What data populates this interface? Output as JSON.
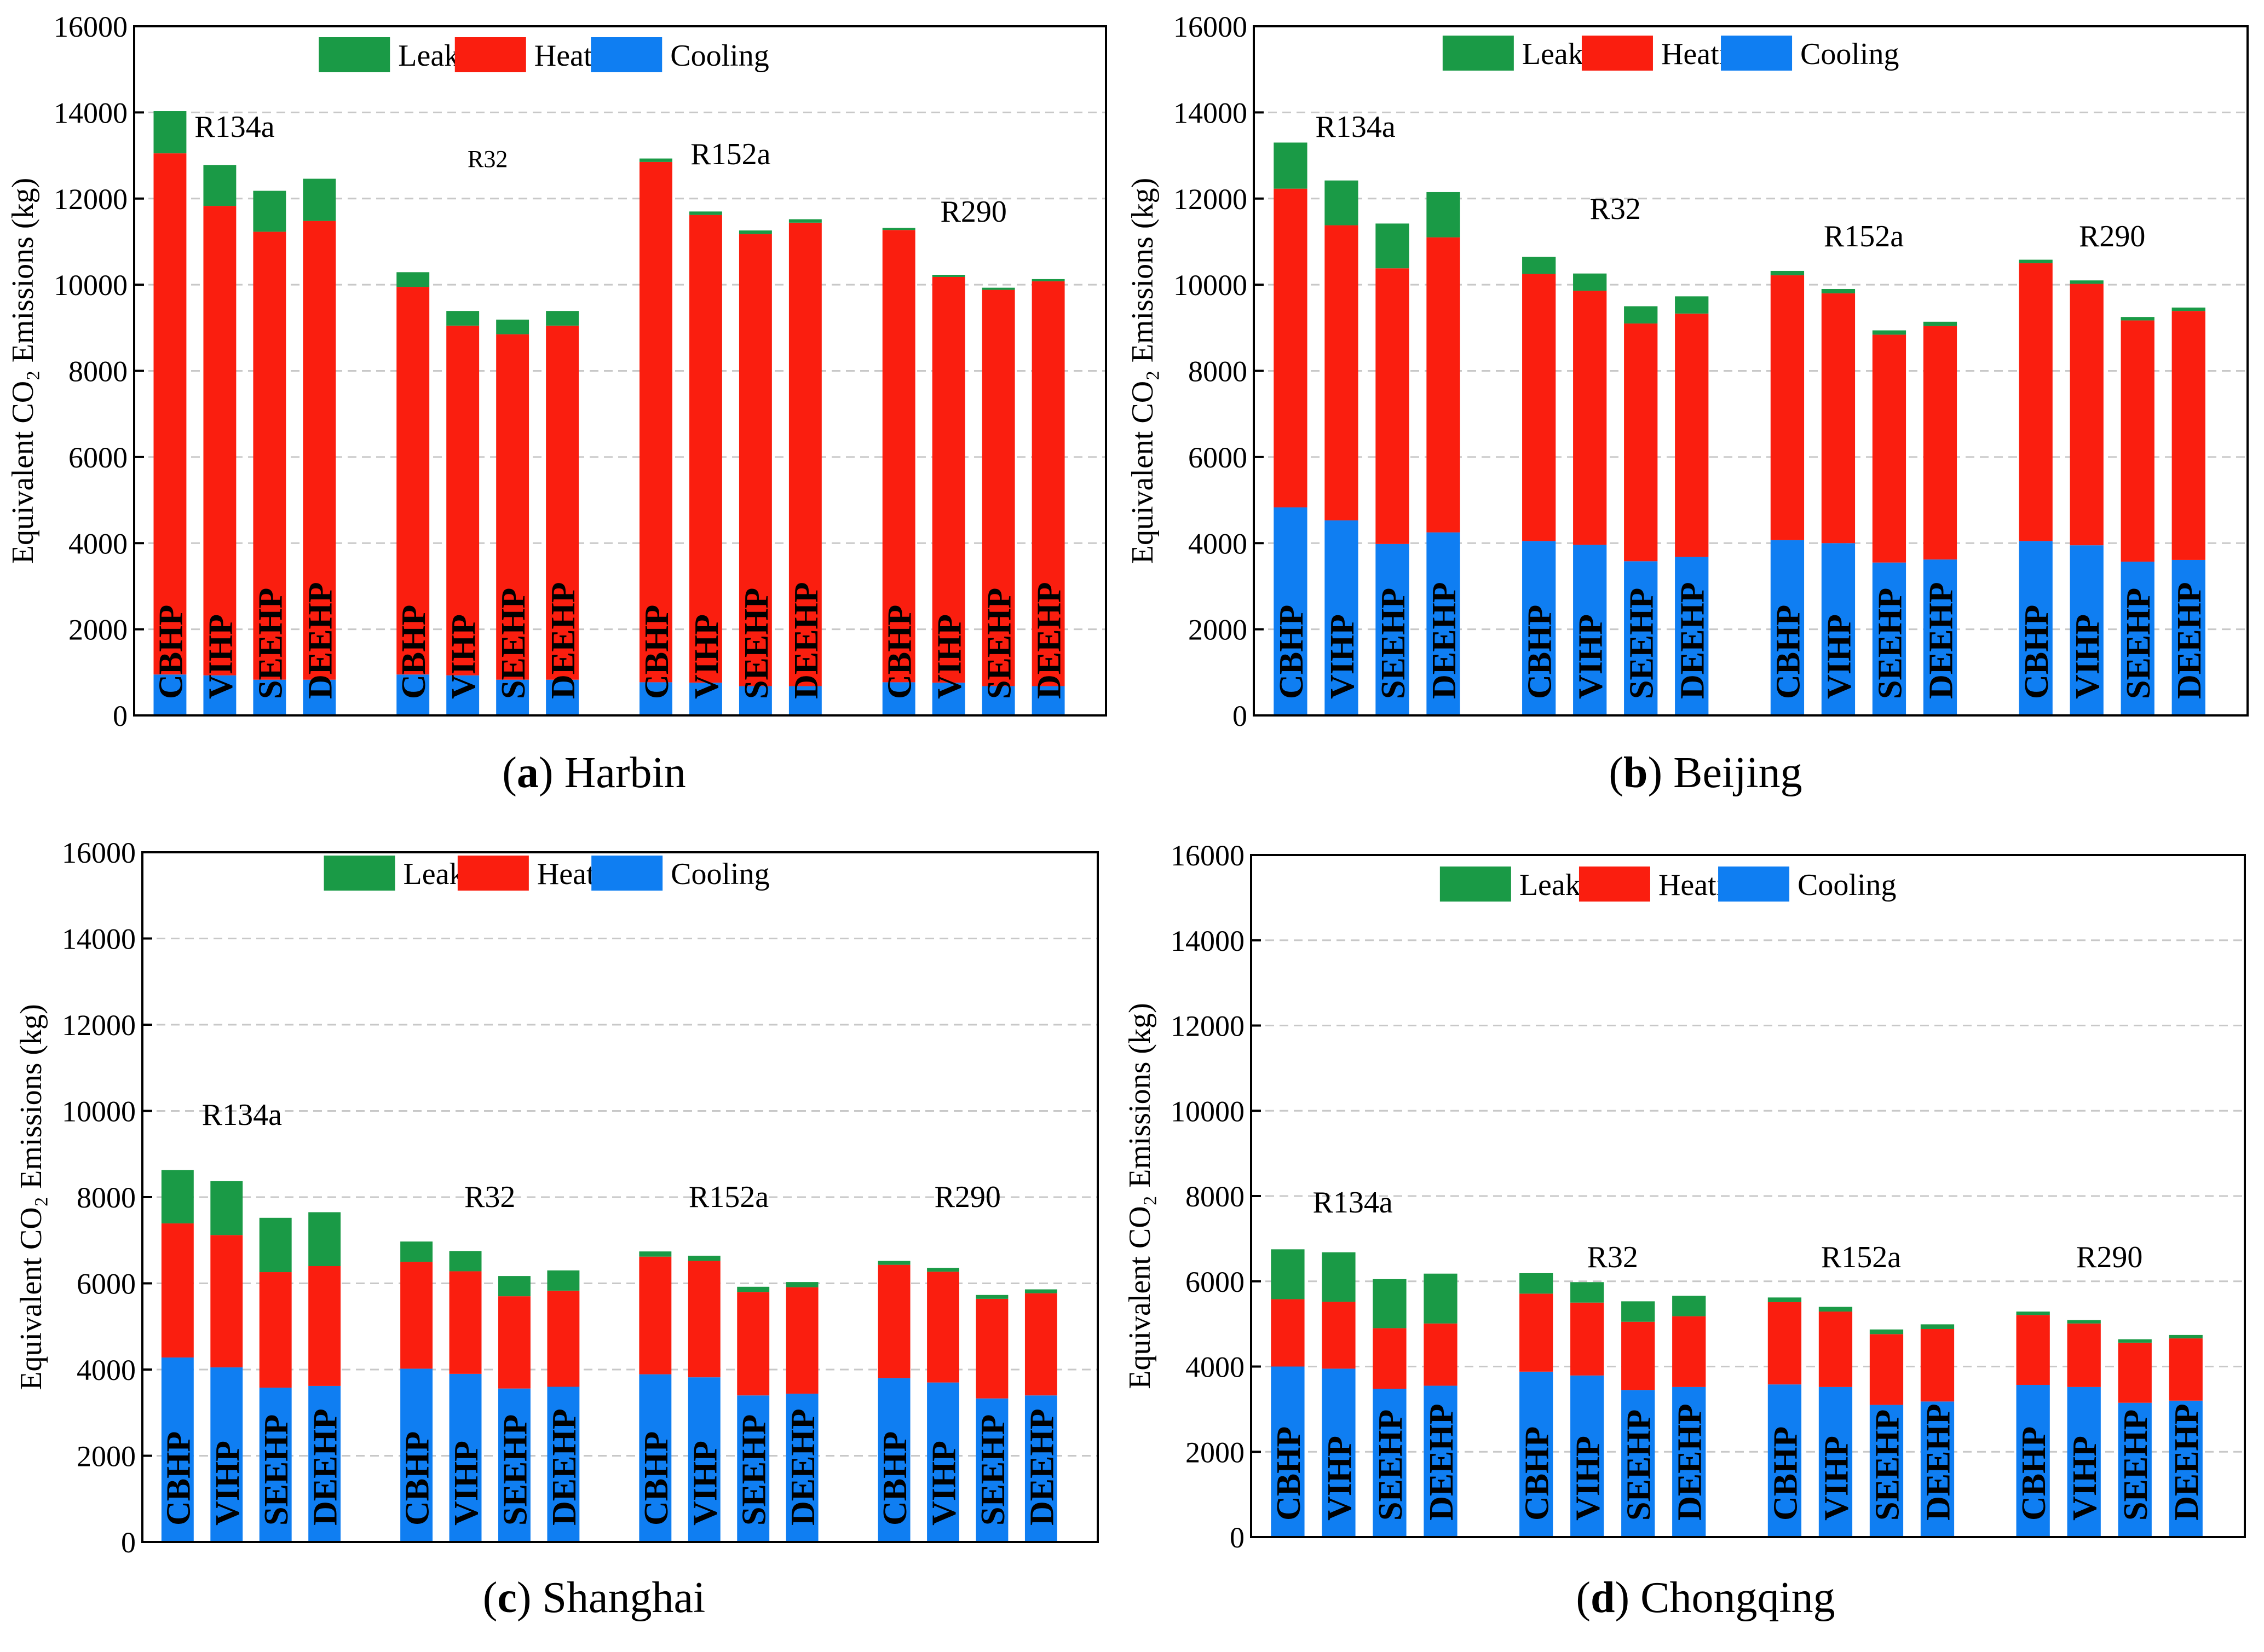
{
  "figure": {
    "type": "stacked-bar-panels"
  },
  "colors": {
    "leakage": "#1a9a46",
    "heating": "#fa1e0f",
    "cooling": "#0f7ef2",
    "grid": "#c8c8c8",
    "axis": "#000000"
  },
  "chart_data": [
    {
      "type": "bar",
      "stacked": true,
      "panel_letter": "a",
      "panel_title": " Harbin",
      "panel_prefix": "(",
      "panel_suffix": ")",
      "ylabel": "Equivalent CO₂ Emissions (kg)",
      "ylim": [
        0,
        16000
      ],
      "yticks": [
        0,
        2000,
        4000,
        6000,
        8000,
        10000,
        12000,
        14000,
        16000
      ],
      "grid": true,
      "legend": [
        "Leakage",
        "Heating",
        "Cooling"
      ],
      "legend_position": "top-center",
      "groups": [
        {
          "name": "R134a",
          "categories": [
            "CBHP",
            "VIHP",
            "SEEHP",
            "DEEHP"
          ],
          "cooling": [
            950,
            930,
            830,
            830
          ],
          "heating": [
            12100,
            10900,
            10400,
            10650
          ],
          "leakage": [
            980,
            950,
            950,
            980
          ]
        },
        {
          "name": "R32",
          "categories": [
            "CBHP",
            "VIHP",
            "SEEHP",
            "DEEHP"
          ],
          "cooling": [
            950,
            930,
            830,
            830
          ],
          "heating": [
            9000,
            8120,
            8020,
            8220
          ],
          "leakage": [
            340,
            340,
            340,
            340
          ]
        },
        {
          "name": "R152a",
          "categories": [
            "CBHP",
            "VIHP",
            "SEEHP",
            "DEEHP"
          ],
          "cooling": [
            770,
            760,
            680,
            680
          ],
          "heating": [
            12080,
            10860,
            10500,
            10760
          ],
          "leakage": [
            80,
            80,
            80,
            80
          ]
        },
        {
          "name": "R290",
          "categories": [
            "CBHP",
            "VIHP",
            "SEEHP",
            "DEEHP"
          ],
          "cooling": [
            770,
            760,
            680,
            680
          ],
          "heating": [
            10500,
            9420,
            9200,
            9400
          ],
          "leakage": [
            50,
            50,
            50,
            50
          ]
        }
      ]
    },
    {
      "type": "bar",
      "stacked": true,
      "panel_letter": "b",
      "panel_title": " Beijing",
      "panel_prefix": "(",
      "panel_suffix": ")",
      "ylabel": "Equivalent CO₂ Emissions (kg)",
      "ylim": [
        0,
        16000
      ],
      "yticks": [
        0,
        2000,
        4000,
        6000,
        8000,
        10000,
        12000,
        14000,
        16000
      ],
      "grid": true,
      "legend": [
        "Leakage",
        "Heating",
        "Cooling"
      ],
      "legend_position": "top-center",
      "groups": [
        {
          "name": "R134a",
          "categories": [
            "CBHP",
            "VIHP",
            "SEEHP",
            "DEEHP"
          ],
          "cooling": [
            4830,
            4530,
            3980,
            4250
          ],
          "heating": [
            7400,
            6850,
            6400,
            6850
          ],
          "leakage": [
            1070,
            1040,
            1040,
            1050
          ]
        },
        {
          "name": "R32",
          "categories": [
            "CBHP",
            "VIHP",
            "SEEHP",
            "DEEHP"
          ],
          "cooling": [
            4050,
            3960,
            3580,
            3680
          ],
          "heating": [
            6200,
            5900,
            5520,
            5650
          ],
          "leakage": [
            400,
            400,
            400,
            400
          ]
        },
        {
          "name": "R152a",
          "categories": [
            "CBHP",
            "VIHP",
            "SEEHP",
            "DEEHP"
          ],
          "cooling": [
            4070,
            4000,
            3550,
            3620
          ],
          "heating": [
            6150,
            5800,
            5290,
            5420
          ],
          "leakage": [
            100,
            100,
            100,
            100
          ]
        },
        {
          "name": "R290",
          "categories": [
            "CBHP",
            "VIHP",
            "SEEHP",
            "DEEHP"
          ],
          "cooling": [
            4050,
            3950,
            3570,
            3610
          ],
          "heating": [
            6450,
            6070,
            5600,
            5780
          ],
          "leakage": [
            80,
            80,
            80,
            80
          ]
        }
      ]
    },
    {
      "type": "bar",
      "stacked": true,
      "panel_letter": "c",
      "panel_title": " Shanghai",
      "panel_prefix": "(",
      "panel_suffix": ")",
      "ylabel": "Equivalent CO₂ Emissions (kg)",
      "ylim": [
        0,
        16000
      ],
      "yticks": [
        0,
        2000,
        4000,
        6000,
        8000,
        10000,
        12000,
        14000,
        16000
      ],
      "grid": true,
      "legend": [
        "Leakage",
        "Heating",
        "Cooling"
      ],
      "legend_position": "top-center",
      "groups": [
        {
          "name": "R134a",
          "categories": [
            "CBHP",
            "VIHP",
            "SEEHP",
            "DEEHP"
          ],
          "cooling": [
            4280,
            4050,
            3580,
            3620
          ],
          "heating": [
            3110,
            3070,
            2680,
            2780
          ],
          "leakage": [
            1240,
            1250,
            1260,
            1250
          ]
        },
        {
          "name": "R32",
          "categories": [
            "CBHP",
            "VIHP",
            "SEEHP",
            "DEEHP"
          ],
          "cooling": [
            4020,
            3900,
            3560,
            3600
          ],
          "heating": [
            2480,
            2380,
            2140,
            2230
          ],
          "leakage": [
            470,
            470,
            470,
            470
          ]
        },
        {
          "name": "R152a",
          "categories": [
            "CBHP",
            "VIHP",
            "SEEHP",
            "DEEHP"
          ],
          "cooling": [
            3890,
            3820,
            3400,
            3440
          ],
          "heating": [
            2730,
            2700,
            2400,
            2470
          ],
          "leakage": [
            120,
            120,
            120,
            120
          ]
        },
        {
          "name": "R290",
          "categories": [
            "CBHP",
            "VIHP",
            "SEEHP",
            "DEEHP"
          ],
          "cooling": [
            3800,
            3700,
            3330,
            3400
          ],
          "heating": [
            2630,
            2570,
            2310,
            2370
          ],
          "leakage": [
            90,
            90,
            90,
            90
          ]
        }
      ]
    },
    {
      "type": "bar",
      "stacked": true,
      "panel_letter": "d",
      "panel_title": " Chongqing",
      "panel_prefix": "(",
      "panel_suffix": ")",
      "ylabel": "Equivalent CO₂ Emissions (kg)",
      "ylim": [
        0,
        16000
      ],
      "yticks": [
        0,
        2000,
        4000,
        6000,
        8000,
        10000,
        12000,
        14000,
        16000
      ],
      "grid": true,
      "legend": [
        "Leakage",
        "Heating",
        "Cooling"
      ],
      "legend_position": "top-center",
      "groups": [
        {
          "name": "R134a",
          "categories": [
            "CBHP",
            "VIHP",
            "SEEHP",
            "DEEHP"
          ],
          "cooling": [
            4000,
            3950,
            3480,
            3550
          ],
          "heating": [
            1580,
            1570,
            1420,
            1460
          ],
          "leakage": [
            1170,
            1160,
            1150,
            1170
          ]
        },
        {
          "name": "R32",
          "categories": [
            "CBHP",
            "VIHP",
            "SEEHP",
            "DEEHP"
          ],
          "cooling": [
            3880,
            3790,
            3450,
            3520
          ],
          "heating": [
            1830,
            1710,
            1600,
            1660
          ],
          "leakage": [
            480,
            480,
            480,
            480
          ]
        },
        {
          "name": "R152a",
          "categories": [
            "CBHP",
            "VIHP",
            "SEEHP",
            "DEEHP"
          ],
          "cooling": [
            3580,
            3520,
            3100,
            3180
          ],
          "heating": [
            1930,
            1770,
            1660,
            1700
          ],
          "leakage": [
            110,
            110,
            110,
            110
          ]
        },
        {
          "name": "R290",
          "categories": [
            "CBHP",
            "VIHP",
            "SEEHP",
            "DEEHP"
          ],
          "cooling": [
            3570,
            3520,
            3150,
            3200
          ],
          "heating": [
            1640,
            1490,
            1410,
            1460
          ],
          "leakage": [
            80,
            80,
            80,
            80
          ]
        }
      ]
    }
  ]
}
